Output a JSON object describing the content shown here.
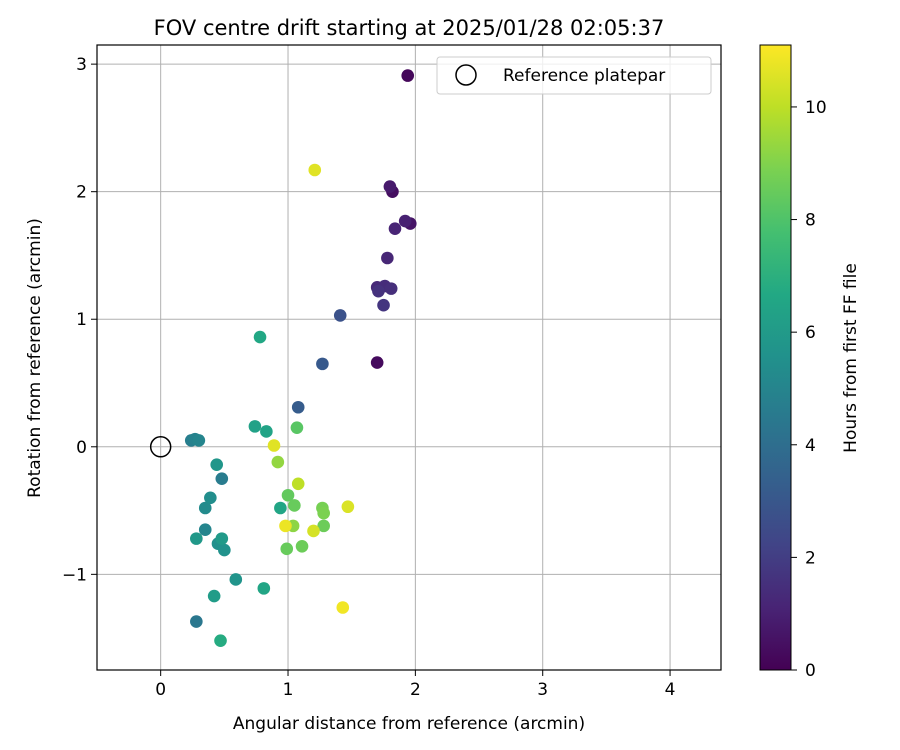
{
  "chart_data": {
    "type": "scatter",
    "title": "FOV centre drift starting at 2025/01/28 02:05:37",
    "xlabel": "Angular distance from reference (arcmin)",
    "ylabel": "Rotation from reference (arcmin)",
    "xlim": [
      -0.5,
      4.4
    ],
    "ylim": [
      -1.75,
      3.15
    ],
    "xticks": [
      0,
      1,
      2,
      3,
      4
    ],
    "yticks": [
      -1,
      0,
      1,
      2,
      3
    ],
    "xtick_labels": [
      "0",
      "1",
      "2",
      "3",
      "4"
    ],
    "ytick_labels": [
      "−1",
      "0",
      "1",
      "2",
      "3"
    ],
    "grid": true,
    "legend": {
      "position": "top-right",
      "entries": [
        "Reference platepar"
      ]
    },
    "reference_point": {
      "x": 0,
      "y": 0
    },
    "colorbar": {
      "label": "Hours from first FF file",
      "colormap": "viridis",
      "range": [
        0,
        11.1
      ],
      "ticks": [
        0,
        2,
        4,
        6,
        8,
        10
      ],
      "tick_labels": [
        "0",
        "2",
        "4",
        "6",
        "8",
        "10"
      ]
    },
    "points": [
      {
        "x": 1.94,
        "y": 2.91,
        "c": 0.2
      },
      {
        "x": 1.7,
        "y": 0.66,
        "c": 0.3
      },
      {
        "x": 1.82,
        "y": 2.0,
        "c": 0.4
      },
      {
        "x": 1.96,
        "y": 1.75,
        "c": 0.6
      },
      {
        "x": 1.8,
        "y": 2.04,
        "c": 0.8
      },
      {
        "x": 1.92,
        "y": 1.77,
        "c": 1.0
      },
      {
        "x": 1.84,
        "y": 1.71,
        "c": 1.1
      },
      {
        "x": 1.78,
        "y": 1.48,
        "c": 1.2
      },
      {
        "x": 1.7,
        "y": 1.25,
        "c": 1.3
      },
      {
        "x": 1.76,
        "y": 1.26,
        "c": 1.4
      },
      {
        "x": 1.81,
        "y": 1.24,
        "c": 1.5
      },
      {
        "x": 1.71,
        "y": 1.22,
        "c": 1.6
      },
      {
        "x": 1.75,
        "y": 1.11,
        "c": 1.7
      },
      {
        "x": 1.41,
        "y": 1.03,
        "c": 2.8
      },
      {
        "x": 1.27,
        "y": 0.65,
        "c": 3.1
      },
      {
        "x": 1.08,
        "y": 0.31,
        "c": 3.2
      },
      {
        "x": 0.28,
        "y": -1.37,
        "c": 4.4
      },
      {
        "x": 0.48,
        "y": -0.25,
        "c": 4.6
      },
      {
        "x": 0.24,
        "y": 0.05,
        "c": 4.7
      },
      {
        "x": 0.27,
        "y": 0.06,
        "c": 4.9
      },
      {
        "x": 0.3,
        "y": 0.05,
        "c": 5.0
      },
      {
        "x": 0.35,
        "y": -0.65,
        "c": 5.0
      },
      {
        "x": 0.35,
        "y": -0.48,
        "c": 5.3
      },
      {
        "x": 0.39,
        "y": -0.4,
        "c": 5.4
      },
      {
        "x": 0.45,
        "y": -0.76,
        "c": 5.5
      },
      {
        "x": 0.5,
        "y": -0.81,
        "c": 5.6
      },
      {
        "x": 0.59,
        "y": -1.04,
        "c": 5.7
      },
      {
        "x": 0.44,
        "y": -0.14,
        "c": 5.8
      },
      {
        "x": 0.28,
        "y": -0.72,
        "c": 5.9
      },
      {
        "x": 0.48,
        "y": -0.72,
        "c": 6.0
      },
      {
        "x": 0.42,
        "y": -1.17,
        "c": 6.1
      },
      {
        "x": 0.74,
        "y": 0.16,
        "c": 6.3
      },
      {
        "x": 0.83,
        "y": 0.12,
        "c": 6.4
      },
      {
        "x": 0.81,
        "y": -1.11,
        "c": 6.5
      },
      {
        "x": 0.78,
        "y": 0.86,
        "c": 6.6
      },
      {
        "x": 0.47,
        "y": -1.52,
        "c": 6.8
      },
      {
        "x": 1.07,
        "y": 0.15,
        "c": 8.2
      },
      {
        "x": 1.0,
        "y": -0.38,
        "c": 8.4
      },
      {
        "x": 1.05,
        "y": -0.46,
        "c": 8.5
      },
      {
        "x": 0.99,
        "y": -0.8,
        "c": 8.5
      },
      {
        "x": 1.11,
        "y": -0.78,
        "c": 8.6
      },
      {
        "x": 1.28,
        "y": -0.62,
        "c": 8.6
      },
      {
        "x": 1.27,
        "y": -0.48,
        "c": 8.8
      },
      {
        "x": 1.28,
        "y": -0.52,
        "c": 8.9
      },
      {
        "x": 1.04,
        "y": -0.62,
        "c": 9.2
      },
      {
        "x": 0.94,
        "y": -0.48,
        "c": 6.5
      },
      {
        "x": 0.92,
        "y": -0.12,
        "c": 9.3
      },
      {
        "x": 1.08,
        "y": -0.29,
        "c": 10.0
      },
      {
        "x": 0.89,
        "y": 0.01,
        "c": 10.6
      },
      {
        "x": 0.98,
        "y": -0.62,
        "c": 10.8
      },
      {
        "x": 1.2,
        "y": -0.66,
        "c": 10.4
      },
      {
        "x": 1.47,
        "y": -0.47,
        "c": 10.5
      },
      {
        "x": 1.21,
        "y": 2.17,
        "c": 10.6
      },
      {
        "x": 1.43,
        "y": -1.26,
        "c": 10.9
      }
    ]
  }
}
